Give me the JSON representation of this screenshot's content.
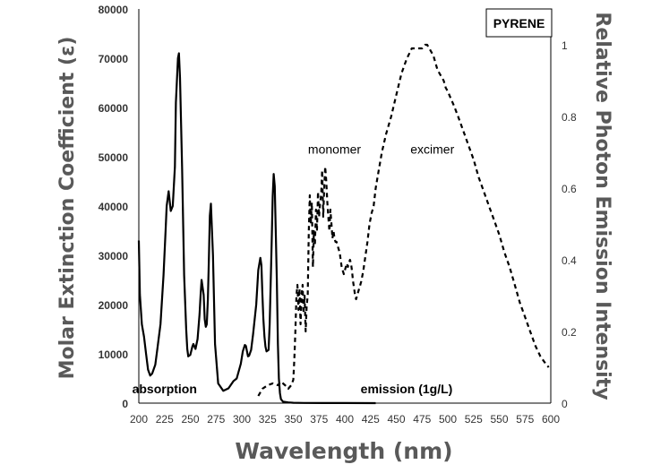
{
  "chart_data": {
    "type": "line",
    "title": "PYRENE",
    "xlabel": "Wavelength (nm)",
    "ylabel_left": "Molar Extinction Coefficient (ε)",
    "ylabel_right": "Relative Photon Emission Intensity",
    "xlim": [
      200,
      600
    ],
    "ylim_left": [
      0,
      80000
    ],
    "ylim_right": [
      0,
      1.1
    ],
    "x_ticks": [
      "200",
      "225",
      "250",
      "275",
      "300",
      "325",
      "350",
      "375",
      "400",
      "425",
      "450",
      "475",
      "500",
      "525",
      "550",
      "575",
      "600"
    ],
    "y_left_ticks": [
      "0",
      "10000",
      "20000",
      "30000",
      "40000",
      "50000",
      "60000",
      "70000",
      "80000"
    ],
    "y_right_ticks": [
      "0",
      "0.2",
      "0.4",
      "0.6",
      "0.8",
      "1"
    ],
    "grid": false,
    "series": [
      {
        "name": "absorption",
        "axis": "left",
        "style": "solid",
        "x": [
          200,
          201,
          203,
          205,
          207,
          209,
          211,
          213,
          216,
          218,
          221,
          224,
          226,
          227,
          229,
          231,
          233,
          235,
          236,
          238,
          239,
          240,
          242,
          244,
          246,
          247,
          248,
          250,
          252,
          253,
          255,
          257,
          259,
          260,
          261,
          263,
          264,
          265,
          266,
          267,
          268,
          269,
          270,
          272,
          274,
          277,
          282,
          287,
          292,
          295,
          299,
          301,
          303,
          304,
          305,
          306,
          307,
          309,
          311,
          314,
          316,
          318,
          319,
          320,
          321,
          322,
          323,
          324,
          326,
          327,
          328,
          329,
          330,
          331,
          332,
          334,
          335,
          336,
          337,
          338,
          340,
          345,
          350,
          360,
          380,
          400,
          430
        ],
        "y": [
          33000,
          22000,
          16000,
          13500,
          10000,
          6800,
          5600,
          6000,
          7800,
          11000,
          16000,
          26000,
          35000,
          40000,
          43000,
          39000,
          40000,
          48000,
          61000,
          70000,
          71000,
          66000,
          48000,
          26000,
          15000,
          11000,
          9500,
          9800,
          11500,
          12000,
          11000,
          13000,
          18000,
          22000,
          25000,
          22000,
          17000,
          15500,
          16000,
          21000,
          29000,
          38000,
          40500,
          30000,
          12000,
          4000,
          2500,
          3000,
          4500,
          5000,
          8000,
          10500,
          11800,
          11600,
          10500,
          9500,
          9600,
          10800,
          14000,
          20000,
          27000,
          29500,
          28000,
          22000,
          17000,
          13500,
          11500,
          10500,
          10800,
          16000,
          24000,
          33000,
          42000,
          46500,
          44000,
          25000,
          12000,
          5000,
          2000,
          800,
          300,
          150,
          80,
          40,
          20,
          10,
          0
        ]
      },
      {
        "name": "emission (1g/L)",
        "axis": "right",
        "style": "dashed",
        "x": [
          316,
          320,
          325,
          330,
          335,
          338,
          342,
          345,
          348,
          350,
          351,
          352,
          353,
          354,
          355,
          356,
          357,
          358,
          359,
          360,
          361,
          362,
          363,
          364,
          365,
          366,
          367,
          368,
          369,
          370,
          371,
          372,
          373,
          374,
          375,
          376,
          377,
          378,
          379,
          380,
          381,
          382,
          383,
          384,
          385,
          386,
          387,
          388,
          389,
          390,
          391,
          392,
          393,
          394,
          395,
          396,
          397,
          398,
          399,
          400,
          401,
          402,
          403,
          404,
          405,
          406,
          407,
          408,
          409,
          410,
          411,
          412,
          413,
          414,
          415,
          416,
          418,
          420,
          422,
          424,
          426,
          428,
          430,
          433,
          436,
          440,
          445,
          450,
          455,
          460,
          465,
          470,
          475,
          478,
          480,
          482,
          484,
          486,
          488,
          490,
          492,
          494,
          496,
          498,
          500,
          503,
          506,
          510,
          515,
          520,
          525,
          530,
          535,
          540,
          545,
          550,
          555,
          560,
          565,
          570,
          575,
          580,
          585,
          590,
          595,
          598
        ],
        "y": [
          0.02,
          0.04,
          0.05,
          0.055,
          0.05,
          0.06,
          0.05,
          0.04,
          0.05,
          0.065,
          0.12,
          0.2,
          0.3,
          0.33,
          0.26,
          0.32,
          0.22,
          0.3,
          0.33,
          0.25,
          0.3,
          0.2,
          0.27,
          0.3,
          0.48,
          0.58,
          0.5,
          0.56,
          0.38,
          0.48,
          0.44,
          0.54,
          0.48,
          0.59,
          0.52,
          0.56,
          0.58,
          0.65,
          0.52,
          0.6,
          0.66,
          0.62,
          0.56,
          0.52,
          0.48,
          0.54,
          0.5,
          0.46,
          0.48,
          0.46,
          0.45,
          0.45,
          0.44,
          0.43,
          0.42,
          0.4,
          0.38,
          0.37,
          0.36,
          0.37,
          0.38,
          0.39,
          0.38,
          0.39,
          0.4,
          0.39,
          0.37,
          0.34,
          0.32,
          0.3,
          0.29,
          0.3,
          0.31,
          0.32,
          0.33,
          0.34,
          0.37,
          0.41,
          0.45,
          0.5,
          0.53,
          0.55,
          0.6,
          0.65,
          0.7,
          0.75,
          0.8,
          0.86,
          0.92,
          0.96,
          0.99,
          0.99,
          0.99,
          1.0,
          1.0,
          0.99,
          0.98,
          0.97,
          0.95,
          0.93,
          0.92,
          0.91,
          0.9,
          0.88,
          0.87,
          0.85,
          0.83,
          0.8,
          0.76,
          0.72,
          0.68,
          0.63,
          0.59,
          0.55,
          0.51,
          0.47,
          0.42,
          0.38,
          0.33,
          0.28,
          0.24,
          0.2,
          0.16,
          0.13,
          0.11,
          0.1
        ]
      }
    ],
    "annotations": [
      {
        "text": "absorption",
        "x": 225,
        "y_left": 1800,
        "weight": "bold"
      },
      {
        "text": "monomer",
        "x": 390,
        "y_left": 50500,
        "weight": "normal"
      },
      {
        "text": "excimer",
        "x": 485,
        "y_left": 50500,
        "weight": "normal"
      },
      {
        "text": "emission (1g/L)",
        "x": 460,
        "y_left": 1800,
        "weight": "bold"
      }
    ]
  }
}
